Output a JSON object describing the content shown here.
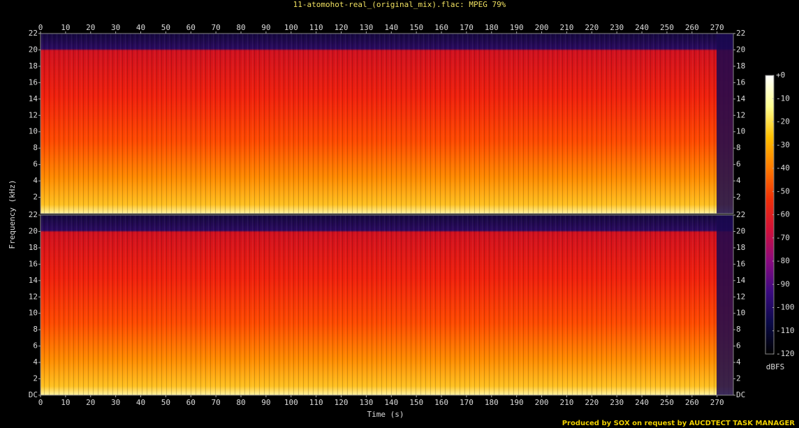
{
  "title": "11-atomohot-real_(original_mix).flac: MPEG 79%",
  "ylabel": "Frequency (kHz)",
  "xlabel": "Time (s)",
  "footer": "Produced by SOX on request by AUCDTECT TASK MANAGER",
  "colorbar": {
    "label": "dBFS",
    "lim": [
      -120,
      0
    ],
    "ticks": [
      {
        "value": 0,
        "label": "+0"
      },
      -10,
      -20,
      -30,
      -40,
      -50,
      -60,
      -70,
      -80,
      -90,
      -100,
      -110,
      -120
    ],
    "colormap": [
      "#000000",
      "#0a0a48",
      "#3a0a80",
      "#8a0a80",
      "#d0103a",
      "#f03008",
      "#ff7a00",
      "#ffc000",
      "#ffff90",
      "#ffffff"
    ]
  },
  "chart_data": [
    {
      "type": "spectrogram",
      "xlim": [
        0,
        276.5
      ],
      "ylim": [
        0,
        22
      ],
      "xticks": [
        0,
        10,
        20,
        30,
        40,
        50,
        60,
        70,
        80,
        90,
        100,
        110,
        120,
        130,
        140,
        150,
        160,
        170,
        180,
        190,
        200,
        210,
        220,
        230,
        240,
        250,
        260,
        270
      ],
      "yticks": [
        2,
        4,
        6,
        8,
        10,
        12,
        14,
        16,
        18,
        20,
        22
      ]
    },
    {
      "type": "spectrogram",
      "xlim": [
        0,
        276.5
      ],
      "ylim": [
        0,
        22
      ],
      "xticks": [
        0,
        10,
        20,
        30,
        40,
        50,
        60,
        70,
        80,
        90,
        100,
        110,
        120,
        130,
        140,
        150,
        160,
        170,
        180,
        190,
        200,
        210,
        220,
        230,
        240,
        250,
        260,
        270
      ],
      "yticks": [
        {
          "value": 0,
          "label": "DC"
        },
        2,
        4,
        6,
        8,
        10,
        12,
        14,
        16,
        18,
        20,
        22
      ]
    }
  ]
}
